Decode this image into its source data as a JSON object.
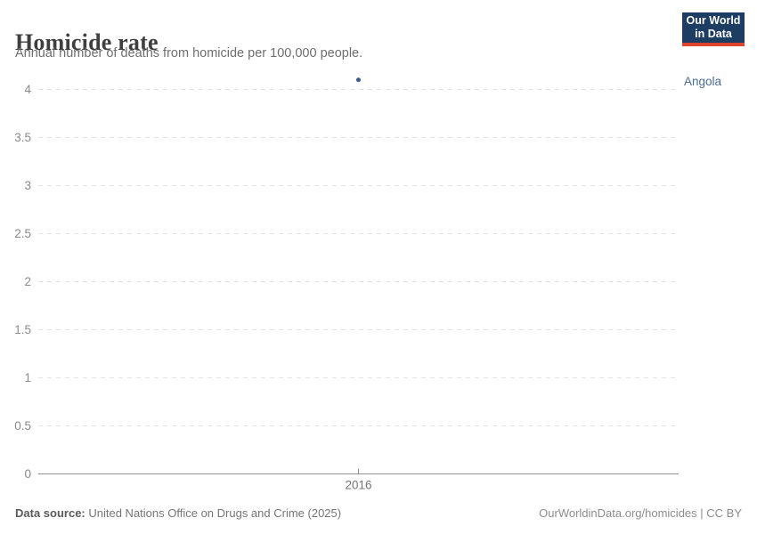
{
  "header": {
    "title": "Homicide rate",
    "subtitle": "Annual number of deaths from homicide per 100,000 people."
  },
  "logo": {
    "line1": "Our World",
    "line2": "in Data"
  },
  "chart_data": {
    "type": "scatter",
    "title": "Homicide rate",
    "subtitle": "Annual number of deaths from homicide per 100,000 people.",
    "xlabel": "",
    "ylabel": "",
    "categories": [
      2016
    ],
    "series": [
      {
        "name": "Angola",
        "color": "#3d5c94",
        "label_color": "#4C6A9C",
        "points": [
          {
            "x": 2016,
            "y": 4.1
          }
        ]
      }
    ],
    "yticks": [
      0,
      0.5,
      1,
      1.5,
      2,
      2.5,
      3,
      3.5,
      4
    ],
    "xticks": [
      "2016"
    ],
    "ylim": [
      0,
      4.1
    ],
    "grid": "horizontal-dashed",
    "legend_position": "right-entity-label"
  },
  "footer": {
    "source_label": "Data source:",
    "source_text": " United Nations Office on Drugs and Crime (2025)",
    "citation": "OurWorldinData.org/homicides | CC BY"
  },
  "colors": {
    "accent": "#4C6A9C",
    "point": "#3d5c94",
    "grid": "#e3e3e3",
    "axis": "#8f8f8f",
    "y_tick_label": "#8a8a8a",
    "x_tick_label": "#757575",
    "logo_bg": "#1d3d63",
    "logo_stripe": "#e0432e"
  }
}
